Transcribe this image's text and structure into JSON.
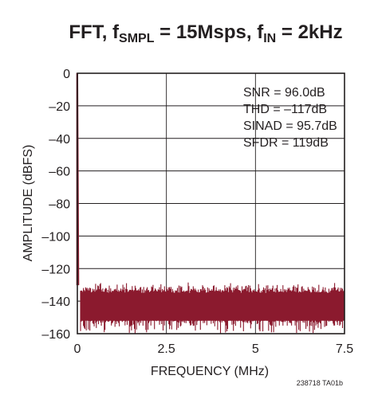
{
  "chart_data": {
    "type": "line",
    "title": {
      "prefix": "FFT, f",
      "sub1": "SMPL",
      "mid": " = 15Msps, f",
      "sub2": "IN",
      "suffix": " = 2kHz"
    },
    "xlabel": "FREQUENCY (MHz)",
    "ylabel": "AMPLITUDE (dBFS)",
    "xlim": [
      0,
      7.5
    ],
    "ylim": [
      -160,
      0
    ],
    "x_ticks": [
      {
        "value": 0,
        "label": "0"
      },
      {
        "value": 2.5,
        "label": "2.5"
      },
      {
        "value": 5,
        "label": "5"
      },
      {
        "value": 7.5,
        "label": "7.5"
      }
    ],
    "y_ticks": [
      {
        "value": 0,
        "label": "0"
      },
      {
        "value": -20,
        "label": "–20"
      },
      {
        "value": -40,
        "label": "–40"
      },
      {
        "value": -60,
        "label": "–60"
      },
      {
        "value": -80,
        "label": "–80"
      },
      {
        "value": -100,
        "label": "–100"
      },
      {
        "value": -120,
        "label": "–120"
      },
      {
        "value": -140,
        "label": "–140"
      },
      {
        "value": -160,
        "label": "–160"
      }
    ],
    "grid": true,
    "series": [
      {
        "color": "#8b1a2e",
        "fundamental": {
          "x": 0.002,
          "y": 0
        },
        "noise_floor": {
          "top_dbfs": -133,
          "band_top_dbfs": -139,
          "band_bottom_dbfs": -152,
          "bottom_dbfs": -160
        }
      }
    ],
    "annotations": [
      "SNR = 96.0dB",
      "THD = –117dB",
      "SINAD = 95.7dB",
      "SFDR = 119dB"
    ],
    "annotation_placement": "top-right"
  },
  "figure_id": "238718 TA01b"
}
